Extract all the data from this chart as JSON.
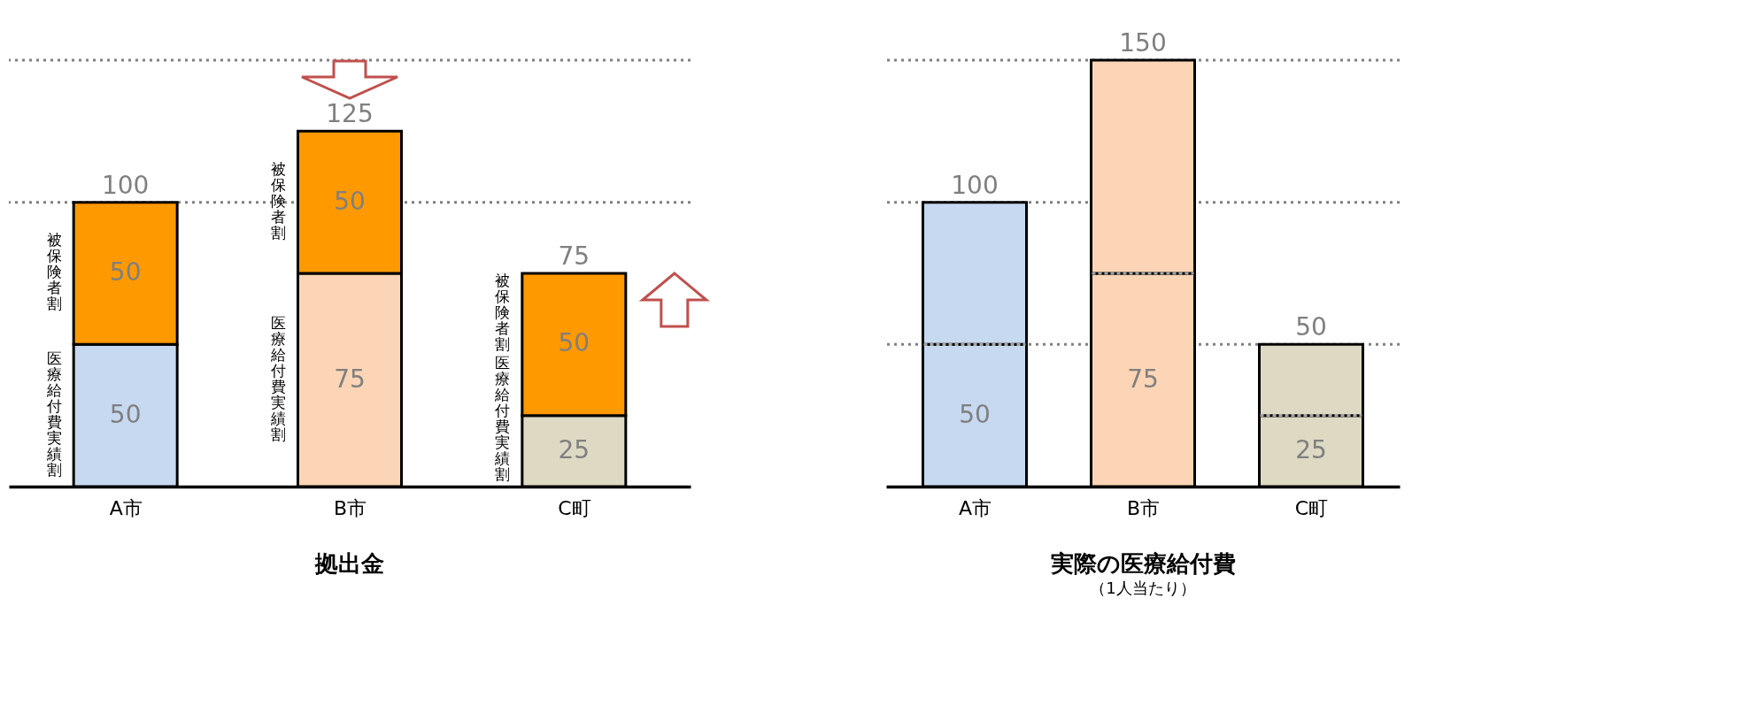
{
  "chart_data": [
    {
      "type": "bar",
      "title": "拠出金",
      "stacked": true,
      "categories": [
        "A市",
        "B市",
        "C町"
      ],
      "ylim": [
        0,
        150
      ],
      "tick_labels": "x",
      "data_labels": true,
      "totals": [
        "100",
        "125",
        "75"
      ],
      "series": [
        {
          "name": "医療給付費実績割",
          "colors": [
            "#c6d9f1",
            "#fbd5b5",
            "#ddd9c3"
          ],
          "values": [
            50,
            75,
            25
          ]
        },
        {
          "name": "被保険者割",
          "color": "#ff9900",
          "values": [
            50,
            50,
            50
          ]
        }
      ],
      "ref_lines": [
        {
          "axis": "y",
          "value": 150,
          "line_style": "dotted",
          "color": "#808080"
        },
        {
          "axis": "y",
          "value": 100,
          "line_style": "dotted",
          "color": "#808080"
        }
      ]
    },
    {
      "type": "bar",
      "title": "実際の医療給付費",
      "subtitle": "（1人当たり）",
      "stacked": true,
      "categories": [
        "A市",
        "B市",
        "C町"
      ],
      "ylim": [
        0,
        150
      ],
      "tick_labels": "x",
      "totals": [
        "100",
        "150",
        "50"
      ],
      "series": [
        {
          "colors": [
            "#c6d9f1",
            "#fbd5b5",
            "#ddd9c3"
          ],
          "values": [
            50,
            75,
            25
          ],
          "value_labels": [
            "50",
            "75",
            "25"
          ]
        },
        {
          "colors": [
            "#c6d9f1",
            "#fbd5b5",
            "#ddd9c3"
          ],
          "values": [
            50,
            75,
            25
          ],
          "value_labels": [
            null,
            null,
            null
          ]
        }
      ],
      "ref_lines": [
        {
          "axis": "y",
          "value": 150,
          "line_style": "dotted",
          "color": "#808080"
        },
        {
          "axis": "y",
          "value": 100,
          "line_style": "dotted",
          "color": "#808080"
        },
        {
          "axis": "y",
          "value": 50,
          "line_style": "dotted",
          "color": "#808080"
        }
      ]
    }
  ]
}
